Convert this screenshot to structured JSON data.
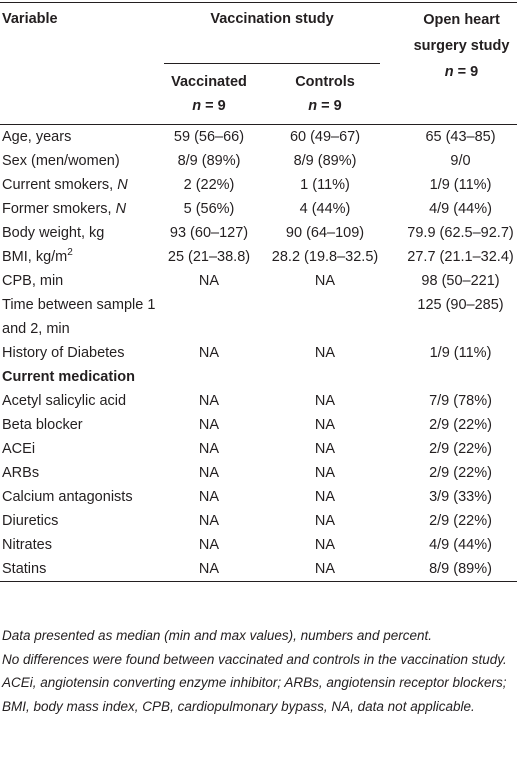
{
  "header": {
    "variable": "Variable",
    "group": "Vaccination study",
    "open": {
      "text": "Open heart surgery study",
      "italic": "n",
      "after": "= 9"
    },
    "vaccinated": {
      "text": "Vaccinated",
      "italic": "n",
      "after": "= 9"
    },
    "controls": {
      "text": "Controls",
      "italic": "n",
      "after": "= 9"
    }
  },
  "rows": [
    {
      "label": {
        "text": "Age, years"
      },
      "values": [
        "59 (56–66)",
        "60 (49–67)",
        "65 (43–85)"
      ]
    },
    {
      "label": {
        "text": "Sex (men/women)"
      },
      "values": [
        "8/9 (89%)",
        "8/9 (89%)",
        "9/0"
      ]
    },
    {
      "label": {
        "text": "Current smokers, ",
        "italic": "N"
      },
      "values": [
        "2 (22%)",
        "1 (11%)",
        "1/9 (11%)"
      ]
    },
    {
      "label": {
        "text": "Former smokers, ",
        "italic": "N"
      },
      "values": [
        "5 (56%)",
        "4 (44%)",
        "4/9 (44%)"
      ]
    },
    {
      "label": {
        "text": "Body weight, kg"
      },
      "values": [
        "93 (60–127)",
        "90 (64–109)",
        "79.9 (62.5–92.7)"
      ]
    },
    {
      "label": {
        "text": "BMI, kg/m",
        "sup": "2"
      },
      "values": [
        "25 (21–38.8)",
        "28.2 (19.8–32.5)",
        "27.7 (21.1–32.4)"
      ]
    },
    {
      "label": {
        "text": "CPB, min"
      },
      "values": [
        "NA",
        "NA",
        "98 (50–221)"
      ]
    },
    {
      "label": {
        "text": "Time between sample 1 and 2, min"
      },
      "values": [
        "",
        "",
        "125 (90–285)"
      ]
    },
    {
      "label": {
        "text": "History of Diabetes"
      },
      "values": [
        "NA",
        "NA",
        "1/9 (11%)"
      ]
    },
    {
      "heading": "Current medication"
    },
    {
      "label": {
        "text": "Acetyl salicylic acid"
      },
      "values": [
        "NA",
        "NA",
        "7/9 (78%)"
      ]
    },
    {
      "label": {
        "text": "Beta blocker"
      },
      "values": [
        "NA",
        "NA",
        "2/9 (22%)"
      ]
    },
    {
      "label": {
        "text": "ACEi"
      },
      "values": [
        "NA",
        "NA",
        "2/9 (22%)"
      ]
    },
    {
      "label": {
        "text": "ARBs"
      },
      "values": [
        "NA",
        "NA",
        "2/9 (22%)"
      ]
    },
    {
      "label": {
        "text": "Calcium antagonists"
      },
      "values": [
        "NA",
        "NA",
        "3/9 (33%)"
      ]
    },
    {
      "label": {
        "text": "Diuretics"
      },
      "values": [
        "NA",
        "NA",
        "2/9 (22%)"
      ]
    },
    {
      "label": {
        "text": "Nitrates"
      },
      "values": [
        "NA",
        "NA",
        "4/9 (44%)"
      ]
    },
    {
      "label": {
        "text": "Statins"
      },
      "values": [
        "NA",
        "NA",
        "8/9 (89%)"
      ]
    }
  ],
  "footnotes": [
    "Data presented as median (min and max values), numbers and percent.",
    "No differences were found between vaccinated and controls in the vaccination study.",
    "ACEi, angiotensin converting enzyme inhibitor; ARBs, angiotensin receptor blockers; BMI, body mass index, CPB, cardiopulmonary bypass, NA, data not applicable."
  ]
}
